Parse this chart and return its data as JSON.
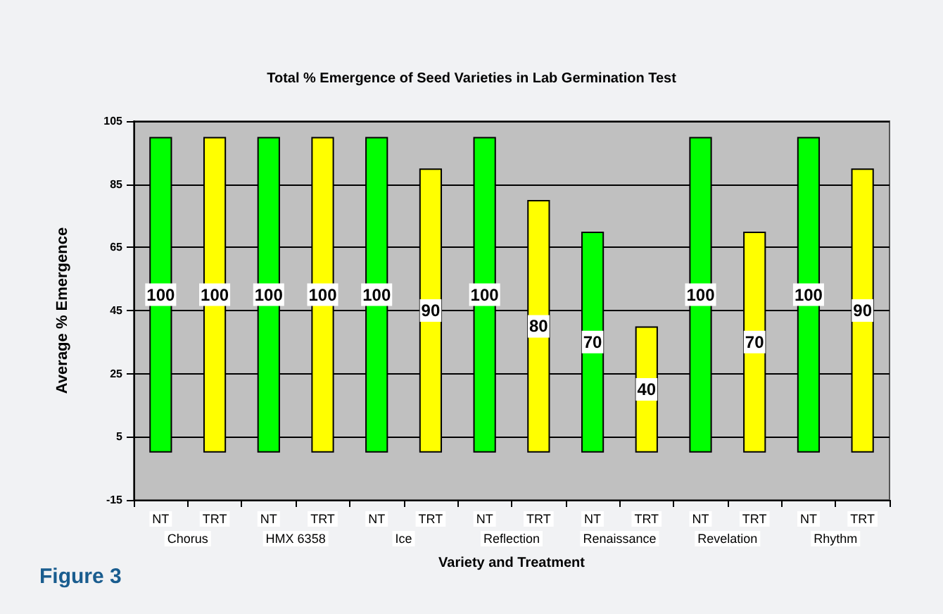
{
  "chart_data": {
    "type": "bar",
    "title": "Total % Emergence of Seed Varieties in Lab Germination Test",
    "xlabel": "Variety and Treatment",
    "ylabel": "Average % Emergence",
    "categories": [
      "NT",
      "TRT",
      "NT",
      "TRT",
      "NT",
      "TRT",
      "NT",
      "TRT",
      "NT",
      "TRT",
      "NT",
      "TRT",
      "NT",
      "TRT"
    ],
    "values": [
      100,
      100,
      100,
      100,
      100,
      90,
      100,
      80,
      70,
      40,
      100,
      70,
      100,
      90
    ],
    "colors": [
      "#00ff00",
      "#ffff00",
      "#00ff00",
      "#ffff00",
      "#00ff00",
      "#ffff00",
      "#00ff00",
      "#ffff00",
      "#00ff00",
      "#ffff00",
      "#00ff00",
      "#ffff00",
      "#00ff00",
      "#ffff00"
    ],
    "ylim": [
      -15,
      105
    ],
    "yticks": [
      -15,
      5,
      25,
      45,
      65,
      85,
      105
    ],
    "grid": "y",
    "data_labels": true,
    "annotations": [
      "Chorus",
      "HMX 6358",
      "Ice",
      "Reflection",
      "Renaissance",
      "Revelation",
      "Rhythm",
      "Figure 3"
    ]
  }
}
